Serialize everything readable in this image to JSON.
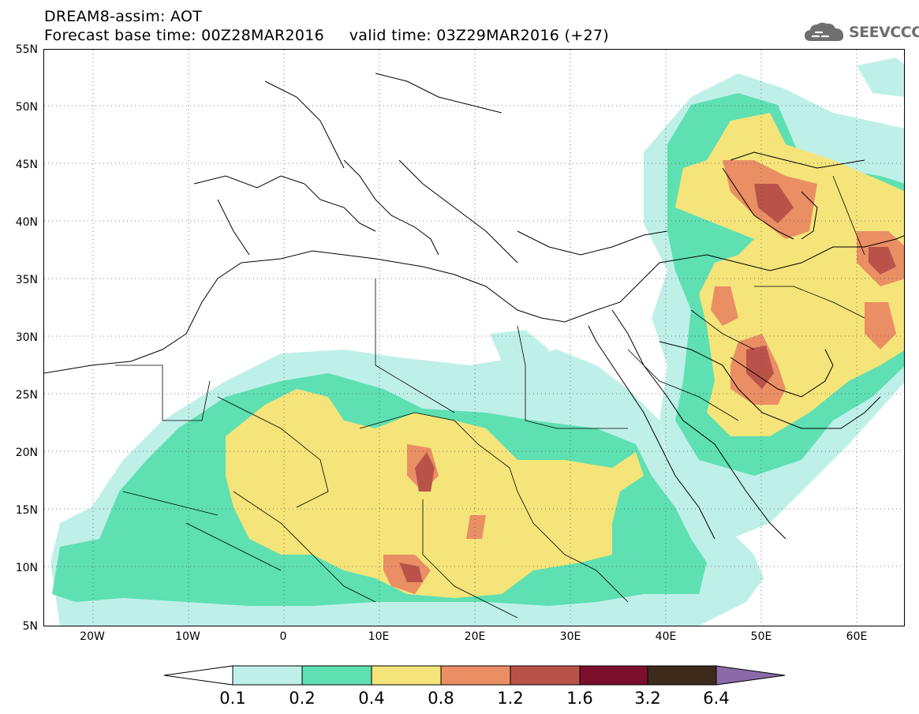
{
  "header": {
    "line1": "DREAM8-assim: AOT",
    "line2": "Forecast base time: 00Z28MAR2016     valid time: 03Z29MAR2016 (+27)"
  },
  "logo": {
    "text": "SEEVCCC",
    "icon": "cloud-icon"
  },
  "map": {
    "projection": "cylindrical equidistant",
    "lon_range": [
      -25,
      65
    ],
    "lat_range": [
      5,
      55
    ],
    "grid": "dotted every 10 degrees",
    "lat_labels": [
      "5N",
      "10N",
      "15N",
      "20N",
      "25N",
      "30N",
      "35N",
      "40N",
      "45N",
      "50N",
      "55N"
    ],
    "lon_labels": [
      "20W",
      "10W",
      "0",
      "10E",
      "20E",
      "30E",
      "40E",
      "50E",
      "60E"
    ]
  },
  "colorbar": {
    "ticks": [
      "0.1",
      "0.2",
      "0.4",
      "0.8",
      "1.2",
      "1.6",
      "3.2",
      "6.4"
    ],
    "colors": [
      "#bff0e8",
      "#5ee0b2",
      "#f5e47a",
      "#ea8e64",
      "#b9534a",
      "#7d0f2e",
      "#3e2a1b",
      "#8b6aa8"
    ],
    "under_color": "#ffffff",
    "over_color": "#8b6aa8"
  }
}
